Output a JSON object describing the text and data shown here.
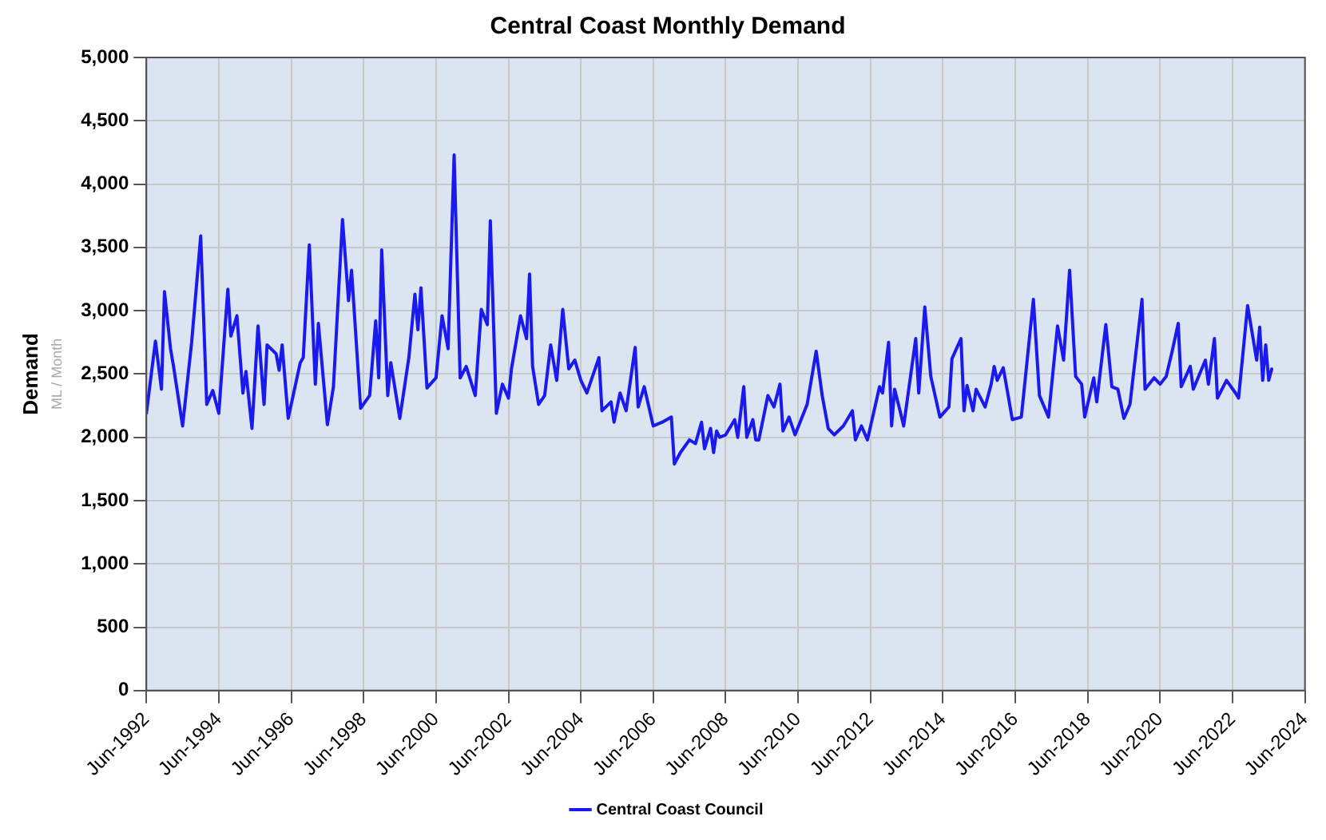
{
  "chart_data": {
    "type": "line",
    "title": "Central Coast Monthly Demand",
    "ylabel": "Demand",
    "annotations": [
      "ML / Month"
    ],
    "x": [
      "1992-06",
      "1992-09",
      "1992-11",
      "1992-12",
      "1993-02",
      "1993-03",
      "1993-06",
      "1993-09",
      "1993-12",
      "1994-02",
      "1994-04",
      "1994-06",
      "1994-09",
      "1994-10",
      "1994-12",
      "1995-02",
      "1995-03",
      "1995-05",
      "1995-07",
      "1995-09",
      "1995-10",
      "1996-01",
      "1996-02",
      "1996-03",
      "1996-05",
      "1996-09",
      "1996-10",
      "1996-12",
      "1997-02",
      "1997-03",
      "1997-06",
      "1997-08",
      "1997-11",
      "1998-01",
      "1998-02",
      "1998-05",
      "1998-08",
      "1998-10",
      "1998-11",
      "1998-12",
      "1999-02",
      "1999-03",
      "1999-06",
      "1999-09",
      "1999-11",
      "1999-12",
      "2000-01",
      "2000-03",
      "2000-06",
      "2000-08",
      "2000-10",
      "2000-12",
      "2001-02",
      "2001-04",
      "2001-07",
      "2001-09",
      "2001-11",
      "2001-12",
      "2002-02",
      "2002-04",
      "2002-06",
      "2002-07",
      "2002-10",
      "2002-12",
      "2003-01",
      "2003-02",
      "2003-04",
      "2003-06",
      "2003-08",
      "2003-10",
      "2003-12",
      "2004-02",
      "2004-04",
      "2004-06",
      "2004-08",
      "2004-12",
      "2005-01",
      "2005-04",
      "2005-05",
      "2005-07",
      "2005-09",
      "2005-12",
      "2006-01",
      "2006-03",
      "2006-06",
      "2006-09",
      "2006-12",
      "2007-01",
      "2007-03",
      "2007-06",
      "2007-08",
      "2007-10",
      "2007-11",
      "2008-01",
      "2008-02",
      "2008-03",
      "2008-04",
      "2008-06",
      "2008-09",
      "2008-10",
      "2008-12",
      "2009-01",
      "2009-03",
      "2009-04",
      "2009-05",
      "2009-08",
      "2009-10",
      "2009-12",
      "2010-01",
      "2010-03",
      "2010-05",
      "2010-09",
      "2010-12",
      "2011-02",
      "2011-04",
      "2011-06",
      "2011-09",
      "2011-12",
      "2012-01",
      "2012-03",
      "2012-05",
      "2012-09",
      "2012-10",
      "2012-12",
      "2013-01",
      "2013-02",
      "2013-04",
      "2013-05",
      "2013-09",
      "2013-10",
      "2013-12",
      "2014-02",
      "2014-05",
      "2014-08",
      "2014-09",
      "2014-12",
      "2015-01",
      "2015-02",
      "2015-04",
      "2015-05",
      "2015-08",
      "2015-10",
      "2015-11",
      "2015-12",
      "2016-02",
      "2016-04",
      "2016-05",
      "2016-08",
      "2016-12",
      "2017-02",
      "2017-05",
      "2017-08",
      "2017-10",
      "2017-12",
      "2018-02",
      "2018-04",
      "2018-05",
      "2018-08",
      "2018-09",
      "2018-12",
      "2019-02",
      "2019-04",
      "2019-06",
      "2019-08",
      "2019-12",
      "2020-01",
      "2020-04",
      "2020-06",
      "2020-08",
      "2020-10",
      "2020-12",
      "2021-01",
      "2021-04",
      "2021-05",
      "2021-09",
      "2021-10",
      "2021-12",
      "2022-01",
      "2022-04",
      "2022-07",
      "2022-08",
      "2022-11",
      "2023-02",
      "2023-03",
      "2023-04",
      "2023-05",
      "2023-06",
      "2023-07"
    ],
    "series": [
      {
        "name": "Central Coast Council",
        "color": "#1a1aee",
        "values": [
          2190,
          2760,
          2380,
          3150,
          2700,
          2560,
          2090,
          2750,
          3590,
          2260,
          2370,
          2190,
          3170,
          2800,
          2960,
          2350,
          2520,
          2070,
          2880,
          2260,
          2730,
          2660,
          2530,
          2730,
          2150,
          2590,
          2630,
          3520,
          2420,
          2900,
          2100,
          2400,
          3720,
          3080,
          3320,
          2230,
          2330,
          2920,
          2470,
          3480,
          2330,
          2590,
          2150,
          2630,
          3130,
          2850,
          3180,
          2390,
          2470,
          2960,
          2700,
          4230,
          2470,
          2560,
          2330,
          3010,
          2890,
          3710,
          2190,
          2420,
          2310,
          2540,
          2960,
          2780,
          3290,
          2560,
          2260,
          2330,
          2730,
          2450,
          3010,
          2540,
          2610,
          2450,
          2350,
          2630,
          2210,
          2280,
          2120,
          2350,
          2210,
          2710,
          2240,
          2400,
          2090,
          2120,
          2160,
          1790,
          1880,
          1980,
          1950,
          2120,
          1910,
          2070,
          1880,
          2050,
          2000,
          2020,
          2140,
          2000,
          2400,
          2000,
          2140,
          1980,
          1980,
          2330,
          2240,
          2420,
          2050,
          2160,
          2020,
          2260,
          2680,
          2330,
          2070,
          2020,
          2090,
          2210,
          1980,
          2090,
          1980,
          2400,
          2350,
          2750,
          2090,
          2380,
          2190,
          2090,
          2780,
          2350,
          3030,
          2480,
          2160,
          2240,
          2620,
          2780,
          2210,
          2410,
          2210,
          2380,
          2240,
          2420,
          2560,
          2450,
          2550,
          2280,
          2140,
          2160,
          3090,
          2330,
          2160,
          2880,
          2610,
          3320,
          2480,
          2420,
          2160,
          2470,
          2280,
          2890,
          2400,
          2380,
          2150,
          2260,
          3090,
          2380,
          2470,
          2420,
          2480,
          2680,
          2900,
          2400,
          2560,
          2380,
          2610,
          2420,
          2780,
          2310,
          2450,
          2350,
          2310,
          3040,
          2610,
          2870,
          2450,
          2730,
          2450,
          2540
        ]
      }
    ],
    "xlim": [
      "1992-06",
      "2024-06"
    ],
    "xticks": [
      {
        "value": "1992-06",
        "label": "Jun-1992"
      },
      {
        "value": "1994-06",
        "label": "Jun-1994"
      },
      {
        "value": "1996-06",
        "label": "Jun-1996"
      },
      {
        "value": "1998-06",
        "label": "Jun-1998"
      },
      {
        "value": "2000-06",
        "label": "Jun-2000"
      },
      {
        "value": "2002-06",
        "label": "Jun-2002"
      },
      {
        "value": "2004-06",
        "label": "Jun-2004"
      },
      {
        "value": "2006-06",
        "label": "Jun-2006"
      },
      {
        "value": "2008-06",
        "label": "Jun-2008"
      },
      {
        "value": "2010-06",
        "label": "Jun-2010"
      },
      {
        "value": "2012-06",
        "label": "Jun-2012"
      },
      {
        "value": "2014-06",
        "label": "Jun-2014"
      },
      {
        "value": "2016-06",
        "label": "Jun-2016"
      },
      {
        "value": "2018-06",
        "label": "Jun-2018"
      },
      {
        "value": "2020-06",
        "label": "Jun-2020"
      },
      {
        "value": "2022-06",
        "label": "Jun-2022"
      },
      {
        "value": "2024-06",
        "label": "Jun-2024"
      }
    ],
    "ylim": [
      0,
      5000
    ],
    "yticks": [
      {
        "value": 0,
        "label": "0"
      },
      {
        "value": 500,
        "label": "500"
      },
      {
        "value": 1000,
        "label": "1,000"
      },
      {
        "value": 1500,
        "label": "1,500"
      },
      {
        "value": 2000,
        "label": "2,000"
      },
      {
        "value": 2500,
        "label": "2,500"
      },
      {
        "value": 3000,
        "label": "3,000"
      },
      {
        "value": 3500,
        "label": "3,500"
      },
      {
        "value": 4000,
        "label": "4,000"
      },
      {
        "value": 4500,
        "label": "4,500"
      },
      {
        "value": 5000,
        "label": "5,000"
      }
    ],
    "grid": true,
    "legend": "bottom",
    "marker": "none",
    "line_style": "solid"
  }
}
